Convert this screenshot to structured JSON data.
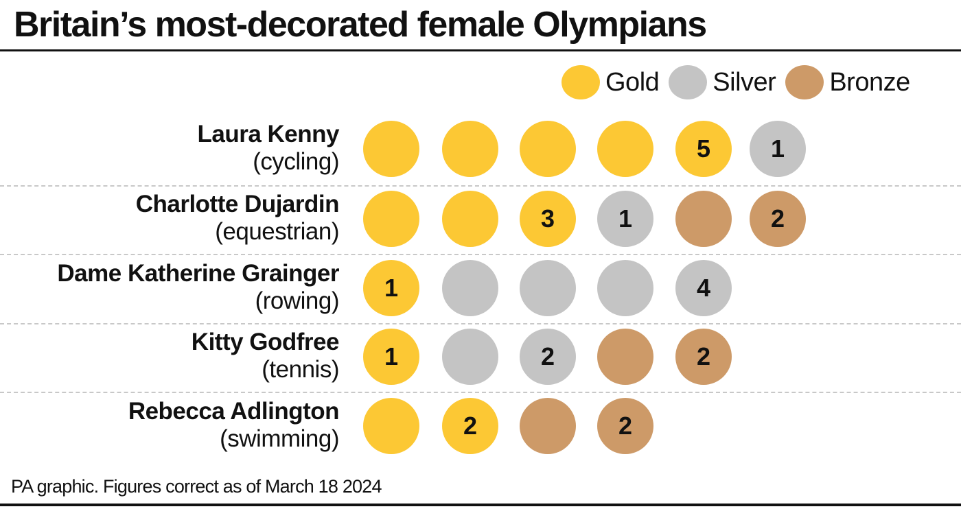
{
  "title": "Britain’s most-decorated female Olympians",
  "legend": [
    {
      "label": "Gold",
      "color": "#fcc834"
    },
    {
      "label": "Silver",
      "color": "#c4c4c4"
    },
    {
      "label": "Bronze",
      "color": "#cd9a68"
    }
  ],
  "rows": [
    {
      "name": "Laura Kenny",
      "sport": "(cycling)",
      "medals": [
        {
          "type": "gold",
          "label": ""
        },
        {
          "type": "gold",
          "label": ""
        },
        {
          "type": "gold",
          "label": ""
        },
        {
          "type": "gold",
          "label": ""
        },
        {
          "type": "gold",
          "label": "5"
        },
        {
          "type": "silver",
          "label": "1"
        }
      ]
    },
    {
      "name": "Charlotte Dujardin",
      "sport": "(equestrian)",
      "medals": [
        {
          "type": "gold",
          "label": ""
        },
        {
          "type": "gold",
          "label": ""
        },
        {
          "type": "gold",
          "label": "3"
        },
        {
          "type": "silver",
          "label": "1"
        },
        {
          "type": "bronze",
          "label": ""
        },
        {
          "type": "bronze",
          "label": "2"
        }
      ]
    },
    {
      "name": "Dame Katherine Grainger",
      "sport": "(rowing)",
      "medals": [
        {
          "type": "gold",
          "label": "1"
        },
        {
          "type": "silver",
          "label": ""
        },
        {
          "type": "silver",
          "label": ""
        },
        {
          "type": "silver",
          "label": ""
        },
        {
          "type": "silver",
          "label": "4"
        }
      ]
    },
    {
      "name": "Kitty Godfree",
      "sport": "(tennis)",
      "medals": [
        {
          "type": "gold",
          "label": "1"
        },
        {
          "type": "silver",
          "label": ""
        },
        {
          "type": "silver",
          "label": "2"
        },
        {
          "type": "bronze",
          "label": ""
        },
        {
          "type": "bronze",
          "label": "2"
        }
      ]
    },
    {
      "name": "Rebecca Adlington",
      "sport": "(swimming)",
      "medals": [
        {
          "type": "gold",
          "label": ""
        },
        {
          "type": "gold",
          "label": "2"
        },
        {
          "type": "bronze",
          "label": ""
        },
        {
          "type": "bronze",
          "label": "2"
        }
      ]
    }
  ],
  "footer": "PA graphic. Figures correct as of March 18 2024",
  "chart_data": {
    "type": "table",
    "title": "Britain’s most-decorated female Olympians",
    "categories": [
      "Laura Kenny (cycling)",
      "Charlotte Dujardin (equestrian)",
      "Dame Katherine Grainger (rowing)",
      "Kitty Godfree (tennis)",
      "Rebecca Adlington (swimming)"
    ],
    "series": [
      {
        "name": "Gold",
        "values": [
          5,
          3,
          1,
          1,
          2
        ]
      },
      {
        "name": "Silver",
        "values": [
          1,
          1,
          4,
          2,
          0
        ]
      },
      {
        "name": "Bronze",
        "values": [
          0,
          2,
          0,
          2,
          2
        ]
      }
    ],
    "legend_position": "top-right",
    "note": "PA graphic. Figures correct as of March 18 2024"
  }
}
